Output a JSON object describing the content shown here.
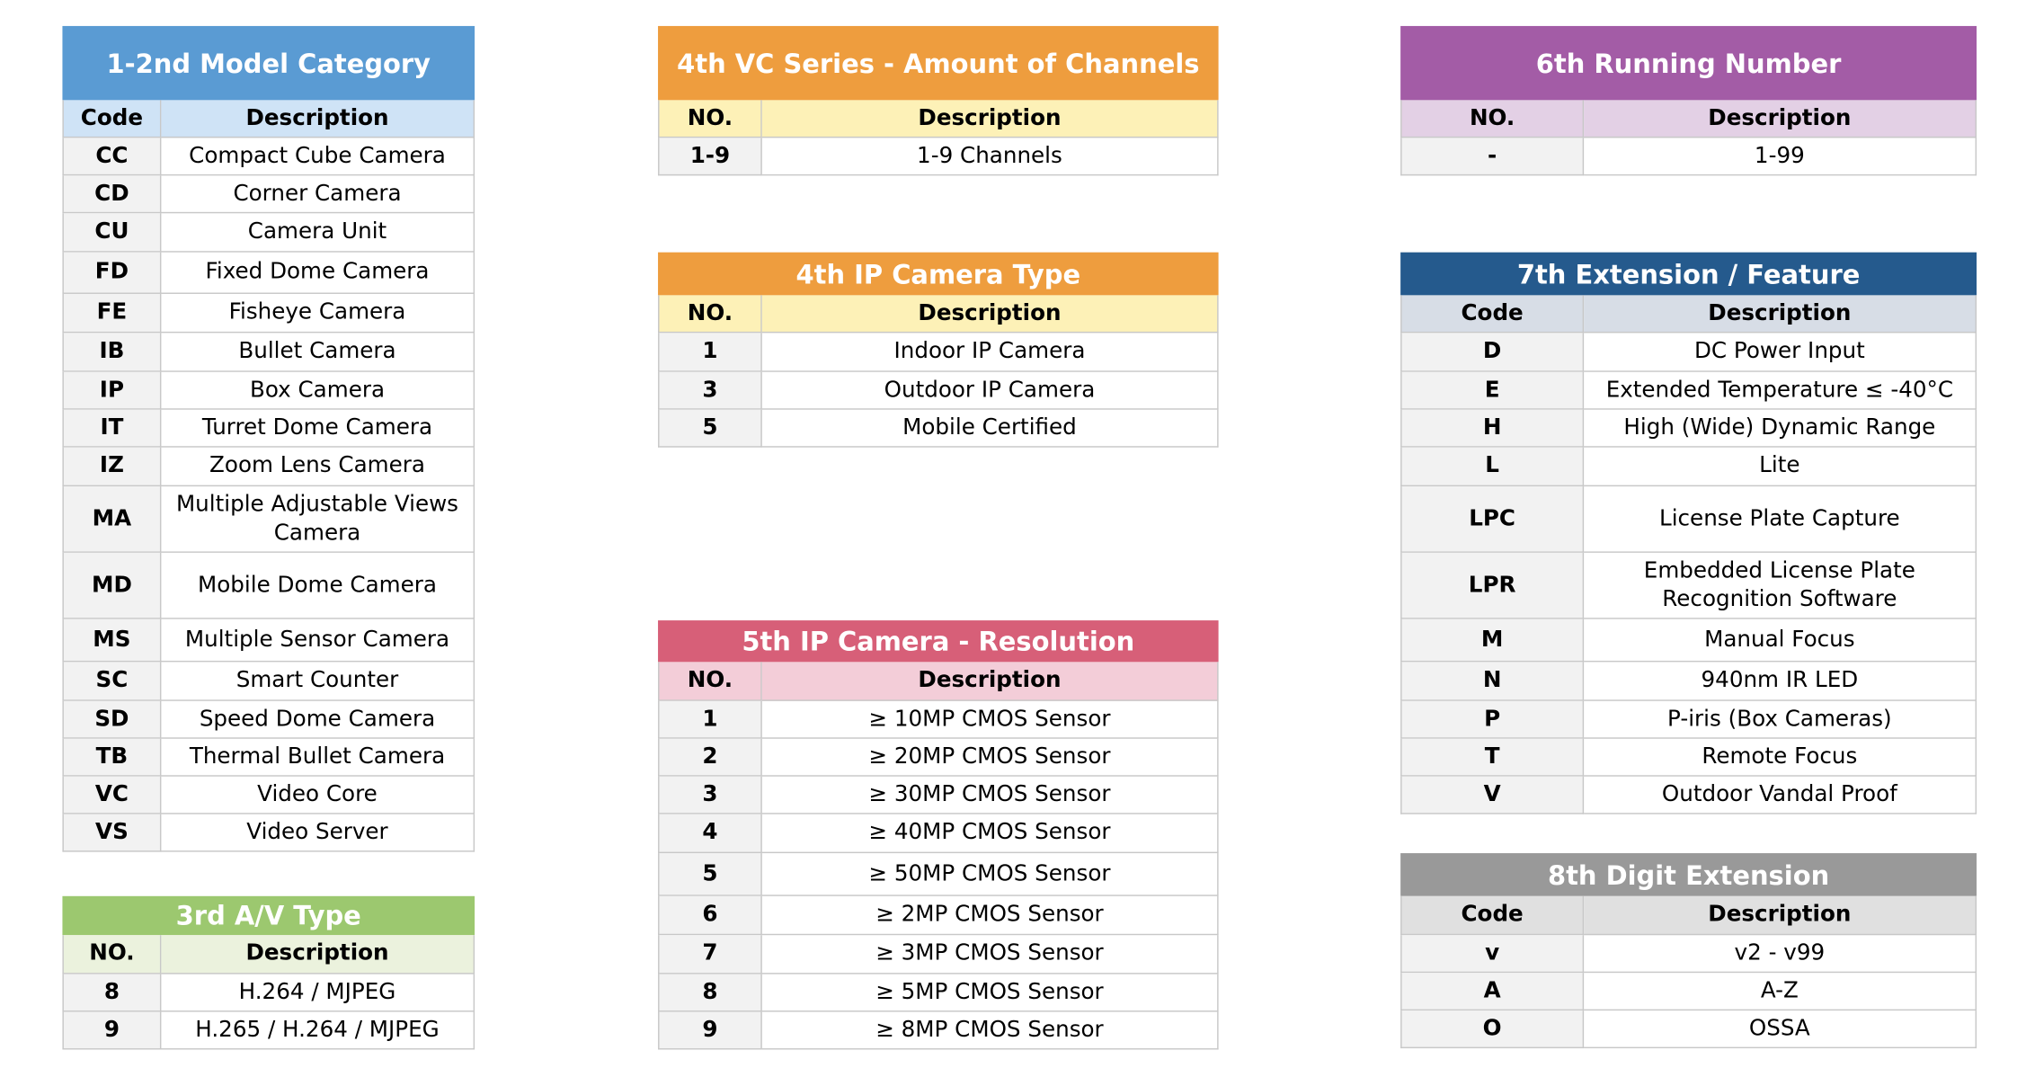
{
  "tables": [
    {
      "title": "1-2nd Model Category",
      "header": [
        "Code",
        "Description"
      ],
      "rows": [
        [
          "CC",
          "Compact Cube Camera"
        ],
        [
          "CD",
          "Corner Camera"
        ],
        [
          "CU",
          "Camera Unit"
        ],
        [
          "FD",
          "Fixed Dome Camera"
        ],
        [
          "FE",
          "Fisheye Camera"
        ],
        [
          "IB",
          "Bullet Camera"
        ],
        [
          "IP",
          "Box Camera"
        ],
        [
          "IT",
          "Turret Dome Camera"
        ],
        [
          "IZ",
          "Zoom Lens Camera"
        ],
        [
          "MA",
          "Multiple Adjustable Views Camera"
        ],
        [
          "MD",
          "Mobile Dome Camera"
        ],
        [
          "MS",
          "Multiple Sensor Camera"
        ],
        [
          "SC",
          "Smart Counter"
        ],
        [
          "SD",
          "Speed Dome Camera"
        ],
        [
          "TB",
          "Thermal Bullet Camera"
        ],
        [
          "VC",
          "Video Core"
        ],
        [
          "VS",
          "Video Server"
        ]
      ]
    },
    {
      "title": "3rd A/V Type",
      "header": [
        "NO.",
        "Description"
      ],
      "rows": [
        [
          "8",
          "H.264 / MJPEG"
        ],
        [
          "9",
          "H.265 / H.264 / MJPEG"
        ]
      ]
    },
    {
      "title": "4th VC Series - Amount of Channels",
      "header": [
        "NO.",
        "Description"
      ],
      "rows": [
        [
          "1-9",
          "1-9 Channels"
        ]
      ]
    },
    {
      "title": "4th IP Camera Type",
      "header": [
        "NO.",
        "Description"
      ],
      "rows": [
        [
          "1",
          "Indoor IP Camera"
        ],
        [
          "3",
          "Outdoor IP Camera"
        ],
        [
          "5",
          "Mobile Certified"
        ]
      ]
    },
    {
      "title": "5th IP Camera - Resolution",
      "header": [
        "NO.",
        "Description"
      ],
      "rows": [
        [
          "1",
          "≥ 10MP CMOS Sensor"
        ],
        [
          "2",
          "≥ 20MP CMOS Sensor"
        ],
        [
          "3",
          "≥ 30MP CMOS Sensor"
        ],
        [
          "4",
          "≥ 40MP CMOS Sensor"
        ],
        [
          "5",
          "≥ 50MP CMOS Sensor"
        ],
        [
          "6",
          "≥ 2MP CMOS Sensor"
        ],
        [
          "7",
          "≥ 3MP CMOS Sensor"
        ],
        [
          "8",
          "≥ 5MP CMOS Sensor"
        ],
        [
          "9",
          "≥ 8MP CMOS Sensor"
        ]
      ]
    },
    {
      "title": "6th Running Number",
      "header": [
        "NO.",
        "Description"
      ],
      "rows": [
        [
          "-",
          "1-99"
        ]
      ]
    },
    {
      "title": "7th Extension / Feature",
      "header": [
        "Code",
        "Description"
      ],
      "rows": [
        [
          "D",
          "DC Power Input"
        ],
        [
          "E",
          "Extended Temperature ≤ -40°C"
        ],
        [
          "H",
          "High (Wide) Dynamic Range"
        ],
        [
          "L",
          "Lite"
        ],
        [
          "LPC",
          "License Plate Capture"
        ],
        [
          "LPR",
          "Embedded License Plate Recognition Software"
        ],
        [
          "M",
          "Manual Focus"
        ],
        [
          "N",
          "940nm IR LED"
        ],
        [
          "P",
          "P-iris (Box Cameras)"
        ],
        [
          "T",
          "Remote Focus"
        ],
        [
          "V",
          "Outdoor Vandal Proof"
        ]
      ]
    },
    {
      "title": "8th Digit Extension",
      "header": [
        "Code",
        "Description"
      ],
      "rows": [
        [
          "v",
          "v2 - v99"
        ],
        [
          "A",
          "A-Z"
        ],
        [
          "O",
          "OSSA"
        ]
      ]
    }
  ]
}
